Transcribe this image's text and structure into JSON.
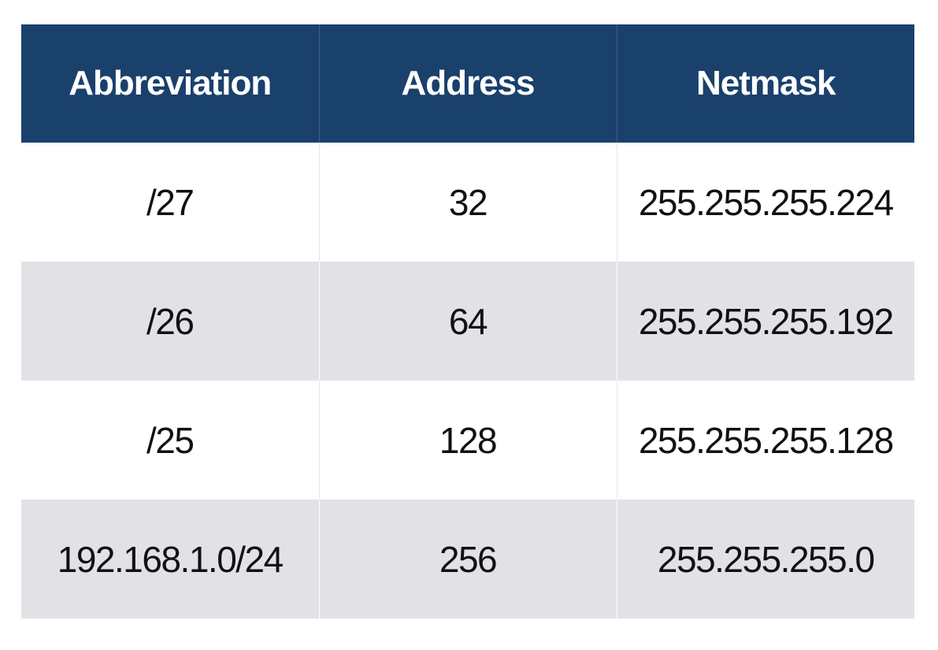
{
  "table": {
    "headers": [
      "Abbreviation",
      "Address",
      "Netmask"
    ],
    "rows": [
      [
        "/27",
        "32",
        "255.255.255.224"
      ],
      [
        "/26",
        "64",
        "255.255.255.192"
      ],
      [
        "/25",
        "128",
        "255.255.255.128"
      ],
      [
        "192.168.1.0/24",
        "256",
        "255.255.255.0"
      ]
    ]
  },
  "colors": {
    "header_bg": "#1a406c",
    "header_text": "#ffffff",
    "row_alt_bg": "#e2e2e6",
    "row_bg": "#ffffff",
    "cell_text": "#111111"
  }
}
